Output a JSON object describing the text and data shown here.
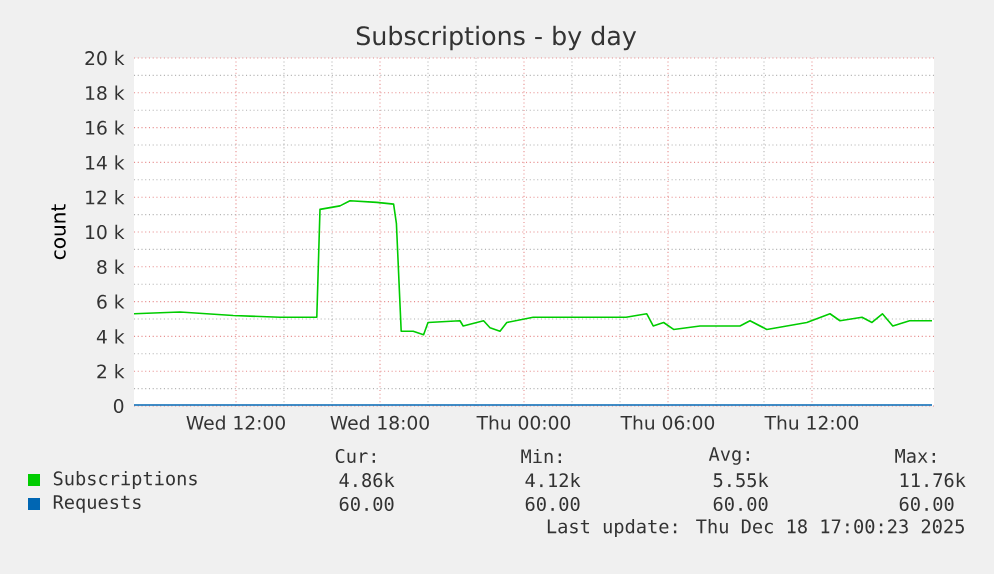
{
  "chart_data": {
    "type": "line",
    "title": "Subscriptions - by day",
    "ylabel": "count",
    "xlim": [
      "2025-12-17T07:45",
      "2025-12-18T17:05"
    ],
    "xticks": [
      {
        "value": "2025-12-17T12:00",
        "label": "Wed 12:00"
      },
      {
        "value": "2025-12-17T18:00",
        "label": "Wed 18:00"
      },
      {
        "value": "2025-12-18T00:00",
        "label": "Thu 00:00"
      },
      {
        "value": "2025-12-18T06:00",
        "label": "Thu 06:00"
      },
      {
        "value": "2025-12-18T12:00",
        "label": "Thu 12:00"
      }
    ],
    "ylim": [
      0,
      20000
    ],
    "yticks": [
      0,
      {
        "value": 2000,
        "label": "2 k"
      },
      {
        "value": 4000,
        "label": "4 k"
      },
      {
        "value": 6000,
        "label": "6 k"
      },
      {
        "value": 8000,
        "label": "8 k"
      },
      {
        "value": 10000,
        "label": "10 k"
      },
      {
        "value": 12000,
        "label": "12 k"
      },
      {
        "value": 14000,
        "label": "14 k"
      },
      {
        "value": 16000,
        "label": "16 k"
      },
      {
        "value": 18000,
        "label": "18 k"
      },
      {
        "value": 20000,
        "label": "20 k"
      }
    ],
    "grid": true,
    "legend": "bottom",
    "marker": "none",
    "line_style": "solid",
    "series": [
      {
        "name": "Subscriptions",
        "color": "#00cc00",
        "x": [
          "2025-12-17T07:45",
          "2025-12-17T09:40",
          "2025-12-17T11:53",
          "2025-12-17T13:50",
          "2025-12-17T15:22",
          "2025-12-17T15:30",
          "2025-12-17T16:20",
          "2025-12-17T16:45",
          "2025-12-17T17:52",
          "2025-12-17T18:34",
          "2025-12-17T18:41",
          "2025-12-17T18:53",
          "2025-12-17T19:23",
          "2025-12-17T19:49",
          "2025-12-17T20:00",
          "2025-12-17T21:20",
          "2025-12-17T21:28",
          "2025-12-17T22:19",
          "2025-12-17T22:35",
          "2025-12-17T23:00",
          "2025-12-17T23:17",
          "2025-12-18T00:23",
          "2025-12-18T00:40",
          "2025-12-18T02:20",
          "2025-12-18T04:15",
          "2025-12-18T05:07",
          "2025-12-18T05:23",
          "2025-12-18T05:49",
          "2025-12-18T06:14",
          "2025-12-18T07:20",
          "2025-12-18T09:00",
          "2025-12-18T09:25",
          "2025-12-18T10:07",
          "2025-12-18T11:47",
          "2025-12-18T12:45",
          "2025-12-18T13:10",
          "2025-12-18T14:05",
          "2025-12-18T14:30",
          "2025-12-18T14:56",
          "2025-12-18T15:22",
          "2025-12-18T16:04",
          "2025-12-18T17:00"
        ],
        "values": [
          5300,
          5400,
          5200,
          5100,
          5100,
          11300,
          11500,
          11800,
          11700,
          11600,
          10500,
          4300,
          4300,
          4100,
          4800,
          4900,
          4600,
          4900,
          4500,
          4300,
          4800,
          5100,
          5100,
          5100,
          5100,
          5300,
          4600,
          4800,
          4400,
          4600,
          4600,
          4900,
          4400,
          4800,
          5300,
          4900,
          5100,
          4800,
          5300,
          4600,
          4900,
          4900
        ]
      },
      {
        "name": "Requests",
        "color": "#0066b3",
        "x": [
          "2025-12-17T07:45",
          "2025-12-18T17:00"
        ],
        "values": [
          60,
          60
        ]
      }
    ],
    "annotations": [
      "Cur:",
      "Min:",
      "Avg:",
      "Max:",
      "4.86k",
      "4.12k",
      "5.55k",
      "11.76k",
      "60.00",
      "60.00",
      "60.00",
      "60.00",
      "Last update: Thu Dec 18 17:00:23 2025"
    ]
  }
}
